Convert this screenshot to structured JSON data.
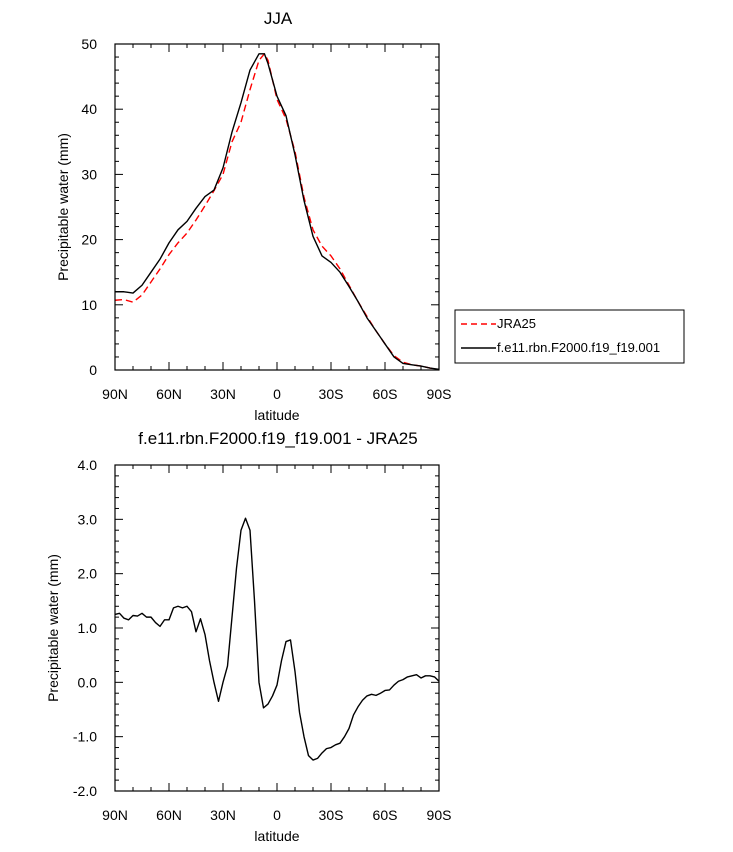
{
  "chart_data": [
    {
      "type": "line",
      "title": "JJA",
      "xlabel": "latitude",
      "ylabel": "Precipitable water (mm)",
      "xlim": [
        -90,
        90
      ],
      "ylim": [
        0,
        50
      ],
      "x_ticks": [
        -90,
        -60,
        -30,
        0,
        30,
        60,
        90
      ],
      "x_tick_labels": [
        "90N",
        "60N",
        "30N",
        "0",
        "30S",
        "60S",
        "90S"
      ],
      "y_ticks": [
        0,
        10,
        20,
        30,
        40,
        50
      ],
      "y_tick_labels": [
        "0",
        "10",
        "20",
        "30",
        "40",
        "50"
      ],
      "legend_position": "outside-right",
      "series": [
        {
          "name": "JRA25",
          "color": "#ff0000",
          "style": "dashed",
          "x": [
            -90,
            -85,
            -80,
            -75,
            -70,
            -65,
            -60,
            -55,
            -50,
            -45,
            -40,
            -35,
            -30,
            -25,
            -20,
            -15,
            -10,
            -7,
            -5,
            0,
            5,
            10,
            15,
            20,
            25,
            30,
            35,
            40,
            45,
            50,
            55,
            60,
            65,
            70,
            75,
            80,
            85,
            90
          ],
          "y": [
            10.7,
            10.8,
            10.4,
            11.5,
            13.5,
            15.5,
            17.7,
            19.5,
            21.0,
            23.0,
            25.2,
            27.5,
            30.0,
            35.0,
            38.0,
            43.0,
            47.5,
            48.5,
            47.5,
            41.5,
            38.5,
            33.5,
            26.5,
            21.5,
            19.0,
            17.5,
            15.5,
            13.0,
            10.5,
            8.2,
            6.0,
            4.0,
            2.2,
            1.2,
            0.8,
            0.6,
            0.3,
            0.0
          ]
        },
        {
          "name": "f.e11.rbn.F2000.f19_f19.001",
          "color": "#000000",
          "style": "solid",
          "x": [
            -90,
            -85,
            -80,
            -75,
            -70,
            -65,
            -60,
            -55,
            -50,
            -45,
            -40,
            -35,
            -30,
            -25,
            -20,
            -15,
            -10,
            -7,
            -5,
            0,
            5,
            10,
            15,
            20,
            25,
            30,
            35,
            40,
            45,
            50,
            55,
            60,
            65,
            70,
            75,
            80,
            85,
            90
          ],
          "y": [
            12.0,
            12.0,
            11.8,
            13.0,
            15.0,
            17.0,
            19.5,
            21.5,
            22.8,
            24.8,
            26.6,
            27.6,
            31.0,
            36.5,
            41.0,
            46.0,
            48.5,
            48.5,
            47.0,
            42.0,
            39.0,
            33.0,
            26.0,
            20.5,
            17.5,
            16.5,
            15.0,
            12.8,
            10.5,
            8.0,
            6.0,
            4.0,
            2.0,
            1.0,
            0.8,
            0.6,
            0.3,
            0.1
          ]
        }
      ]
    },
    {
      "type": "line",
      "title": "f.e11.rbn.F2000.f19_f19.001 - JRA25",
      "xlabel": "latitude",
      "ylabel": "Precipitable water (mm)",
      "xlim": [
        -90,
        90
      ],
      "ylim": [
        -2.0,
        4.0
      ],
      "x_ticks": [
        -90,
        -60,
        -30,
        0,
        30,
        60,
        90
      ],
      "x_tick_labels": [
        "90N",
        "60N",
        "30N",
        "0",
        "30S",
        "60S",
        "90S"
      ],
      "y_ticks": [
        -2,
        -1,
        0,
        1,
        2,
        3,
        4
      ],
      "y_tick_labels": [
        "-2.0",
        "-1.0",
        "0.0",
        "1.0",
        "2.0",
        "3.0",
        "4.0"
      ],
      "series": [
        {
          "color": "#000000",
          "style": "solid",
          "x": [
            -90,
            -87.5,
            -85,
            -82.5,
            -80,
            -77.5,
            -75,
            -72.5,
            -70,
            -67.5,
            -65,
            -62.5,
            -60,
            -57.5,
            -55,
            -52.5,
            -50,
            -47.5,
            -45,
            -42.5,
            -40,
            -37.5,
            -35,
            -32.5,
            -30,
            -27.5,
            -25,
            -22.5,
            -20,
            -17.5,
            -15,
            -12.5,
            -10,
            -7.5,
            -5,
            -2.5,
            0,
            2.5,
            5,
            7.5,
            10,
            12.5,
            15,
            17.5,
            20,
            22.5,
            25,
            27.5,
            30,
            32.5,
            35,
            37.5,
            40,
            42.5,
            45,
            47.5,
            50,
            52.5,
            55,
            57.5,
            60,
            62.5,
            65,
            67.5,
            70,
            72.5,
            75,
            77.5,
            80,
            82.5,
            85,
            87.5,
            90
          ],
          "y": [
            1.25,
            1.27,
            1.18,
            1.15,
            1.23,
            1.22,
            1.27,
            1.2,
            1.2,
            1.1,
            1.03,
            1.15,
            1.15,
            1.37,
            1.4,
            1.37,
            1.4,
            1.3,
            0.93,
            1.17,
            0.88,
            0.4,
            0.0,
            -0.35,
            0.0,
            0.3,
            1.2,
            2.1,
            2.8,
            3.02,
            2.8,
            1.5,
            0.0,
            -0.47,
            -0.4,
            -0.25,
            -0.05,
            0.4,
            0.75,
            0.78,
            0.2,
            -0.55,
            -1.0,
            -1.35,
            -1.43,
            -1.4,
            -1.3,
            -1.22,
            -1.2,
            -1.15,
            -1.12,
            -1.0,
            -0.85,
            -0.6,
            -0.45,
            -0.33,
            -0.25,
            -0.22,
            -0.24,
            -0.2,
            -0.15,
            -0.14,
            -0.05,
            0.02,
            0.05,
            0.1,
            0.12,
            0.14,
            0.08,
            0.12,
            0.12,
            0.1,
            0.02
          ]
        }
      ]
    }
  ]
}
